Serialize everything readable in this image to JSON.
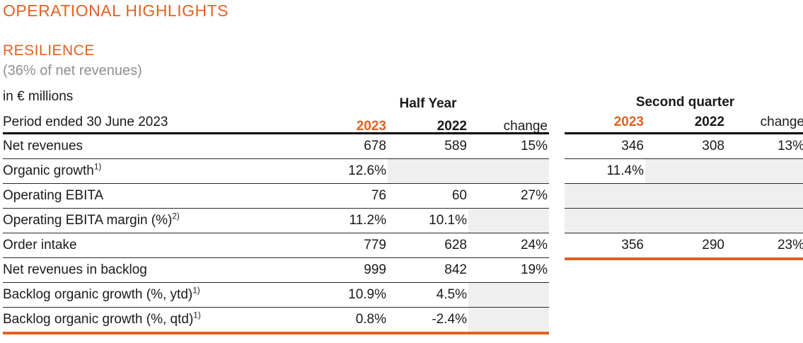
{
  "header": {
    "title": "OPERATIONAL HIGHLIGHTS",
    "section": "RESILIENCE",
    "subtitle": "(36% of net revenues)"
  },
  "table": {
    "unit_label": "in € millions",
    "period_label": "Period ended 30 June 2023",
    "half_year": {
      "group_label": "Half Year",
      "columns": [
        "2023",
        "2022",
        "change"
      ]
    },
    "second_quarter": {
      "group_label": "Second quarter",
      "columns": [
        "2023",
        "2022",
        "change"
      ]
    },
    "rows": [
      {
        "label": "Net revenues",
        "sup": "",
        "hy_2023": "678",
        "hy_2022": "589",
        "hy_change": "15%",
        "q2_2023": "346",
        "q2_2022": "308",
        "q2_change": "13%"
      },
      {
        "label": "Organic growth",
        "sup": "1)",
        "hy_2023": "12.6%",
        "hy_2022": "",
        "hy_change": "",
        "q2_2023": "11.4%",
        "q2_2022": "",
        "q2_change": ""
      },
      {
        "label": "Operating EBITA",
        "sup": "",
        "hy_2023": "76",
        "hy_2022": "60",
        "hy_change": "27%",
        "q2_2023": "",
        "q2_2022": "",
        "q2_change": ""
      },
      {
        "label": "Operating EBITA margin (%)",
        "sup": "2)",
        "hy_2023": "11.2%",
        "hy_2022": "10.1%",
        "hy_change": "",
        "q2_2023": "",
        "q2_2022": "",
        "q2_change": ""
      },
      {
        "label": "Order intake",
        "sup": "",
        "hy_2023": "779",
        "hy_2022": "628",
        "hy_change": "24%",
        "q2_2023": "356",
        "q2_2022": "290",
        "q2_change": "23%"
      },
      {
        "label": "Net revenues in backlog",
        "sup": "",
        "hy_2023": "999",
        "hy_2022": "842",
        "hy_change": "19%"
      },
      {
        "label": "Backlog organic growth (%, ytd)",
        "sup": "1)",
        "hy_2023": "10.9%",
        "hy_2022": "4.5%",
        "hy_change": ""
      },
      {
        "label": "Backlog organic growth (%, qtd)",
        "sup": "1)",
        "hy_2023": "0.8%",
        "hy_2022": "-2.4%",
        "hy_change": ""
      }
    ]
  },
  "colors": {
    "accent_orange": "#E2621F",
    "muted_cell": "#EFEFEF",
    "subtitle_gray": "#8F8F8F"
  }
}
